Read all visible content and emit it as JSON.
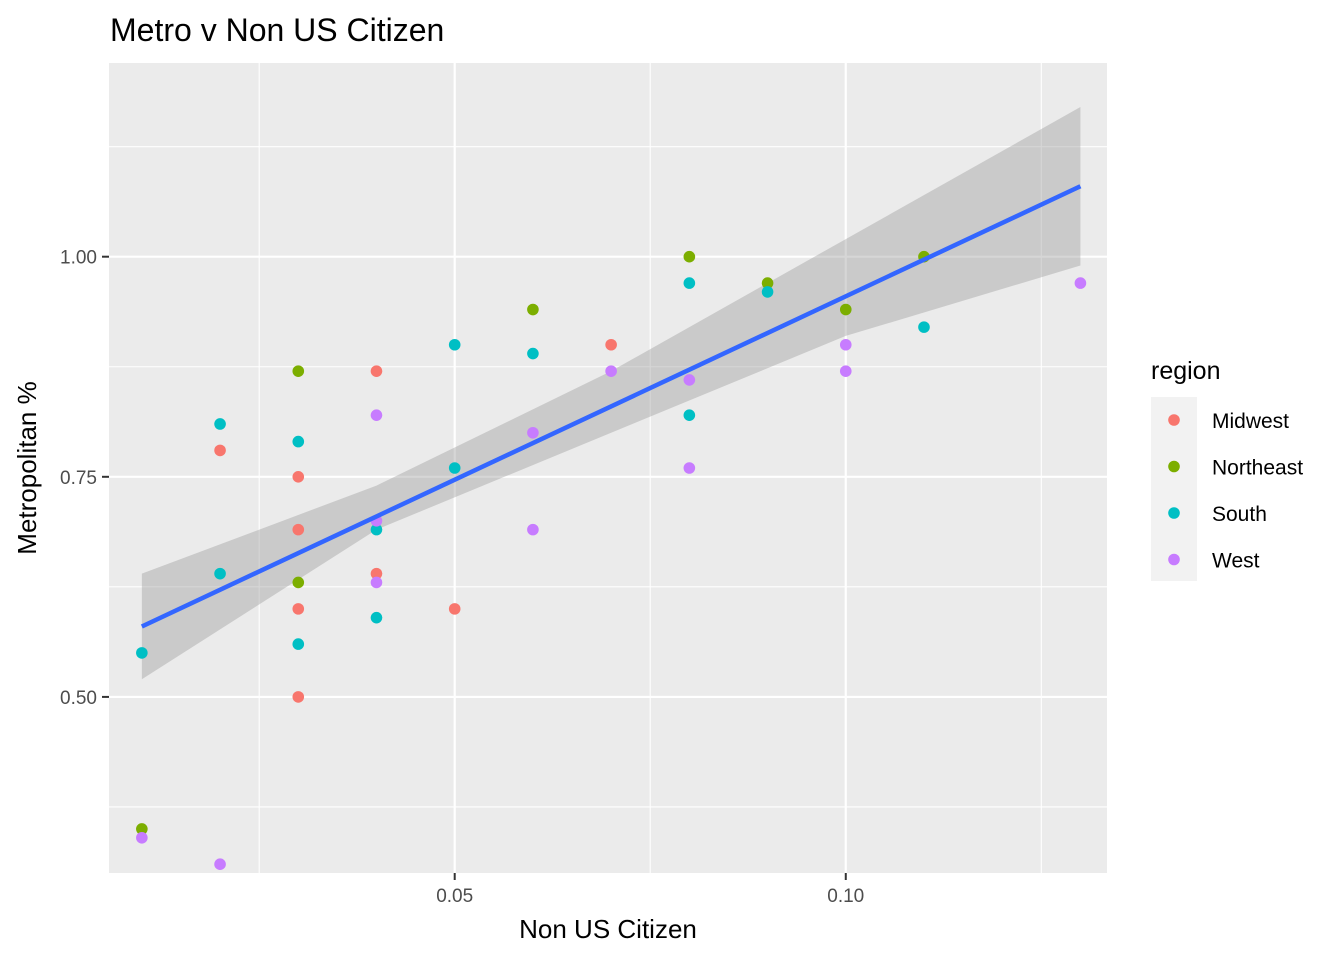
{
  "chart_data": {
    "type": "scatter",
    "title": "Metro v Non US Citizen",
    "xlabel": "Non US Citizen",
    "ylabel": "Metropolitan %",
    "xlim": [
      0.0058,
      0.1334
    ],
    "ylim": [
      0.3,
      1.22
    ],
    "x_ticks": [
      0.05,
      0.1
    ],
    "x_tick_labels": [
      "0.05",
      "0.10"
    ],
    "x_minor_ticks": [
      0.025,
      0.075,
      0.125
    ],
    "y_ticks": [
      0.5,
      0.75,
      1.0
    ],
    "y_tick_labels": [
      "0.50",
      "0.75",
      "1.00"
    ],
    "y_minor_ticks": [
      0.375,
      0.625,
      0.875,
      1.125
    ],
    "grid": true,
    "legend": {
      "title": "region",
      "position": "right",
      "entries": [
        {
          "name": "Midwest",
          "color": "#F8766D"
        },
        {
          "name": "Northeast",
          "color": "#7CAE00"
        },
        {
          "name": "South",
          "color": "#00BFC4"
        },
        {
          "name": "West",
          "color": "#C77CFF"
        }
      ]
    },
    "series": [
      {
        "name": "Midwest",
        "color": "#F8766D",
        "points": [
          [
            0.02,
            0.78
          ],
          [
            0.03,
            0.75
          ],
          [
            0.03,
            0.69
          ],
          [
            0.03,
            0.6
          ],
          [
            0.03,
            0.5
          ],
          [
            0.04,
            0.87
          ],
          [
            0.04,
            0.64
          ],
          [
            0.05,
            0.6
          ],
          [
            0.07,
            0.9
          ]
        ]
      },
      {
        "name": "Northeast",
        "color": "#7CAE00",
        "points": [
          [
            0.01,
            0.35
          ],
          [
            0.03,
            0.87
          ],
          [
            0.03,
            0.63
          ],
          [
            0.06,
            0.94
          ],
          [
            0.08,
            1.0
          ],
          [
            0.09,
            0.97
          ],
          [
            0.1,
            0.94
          ],
          [
            0.11,
            1.0
          ]
        ]
      },
      {
        "name": "South",
        "color": "#00BFC4",
        "points": [
          [
            0.01,
            0.55
          ],
          [
            0.02,
            0.81
          ],
          [
            0.02,
            0.64
          ],
          [
            0.03,
            0.79
          ],
          [
            0.03,
            0.56
          ],
          [
            0.04,
            0.69
          ],
          [
            0.04,
            0.59
          ],
          [
            0.05,
            0.9
          ],
          [
            0.05,
            0.76
          ],
          [
            0.06,
            0.89
          ],
          [
            0.08,
            0.97
          ],
          [
            0.08,
            0.82
          ],
          [
            0.09,
            0.96
          ],
          [
            0.11,
            0.92
          ]
        ]
      },
      {
        "name": "West",
        "color": "#C77CFF",
        "points": [
          [
            0.01,
            0.34
          ],
          [
            0.02,
            0.31
          ],
          [
            0.04,
            0.82
          ],
          [
            0.04,
            0.7
          ],
          [
            0.04,
            0.63
          ],
          [
            0.06,
            0.8
          ],
          [
            0.06,
            0.69
          ],
          [
            0.07,
            0.87
          ],
          [
            0.08,
            0.86
          ],
          [
            0.08,
            0.76
          ],
          [
            0.1,
            0.9
          ],
          [
            0.1,
            0.87
          ],
          [
            0.13,
            0.97
          ]
        ]
      }
    ],
    "fit": {
      "method": "linear",
      "color": "#3366FF",
      "points": [
        [
          0.01,
          0.58
        ],
        [
          0.13,
          1.08
        ]
      ],
      "band_upper": [
        [
          0.01,
          0.64
        ],
        [
          0.04,
          0.74
        ],
        [
          0.07,
          0.87
        ],
        [
          0.1,
          1.02
        ],
        [
          0.13,
          1.17
        ]
      ],
      "band_lower": [
        [
          0.01,
          0.52
        ],
        [
          0.04,
          0.69
        ],
        [
          0.07,
          0.8
        ],
        [
          0.1,
          0.91
        ],
        [
          0.13,
          0.99
        ]
      ]
    }
  }
}
